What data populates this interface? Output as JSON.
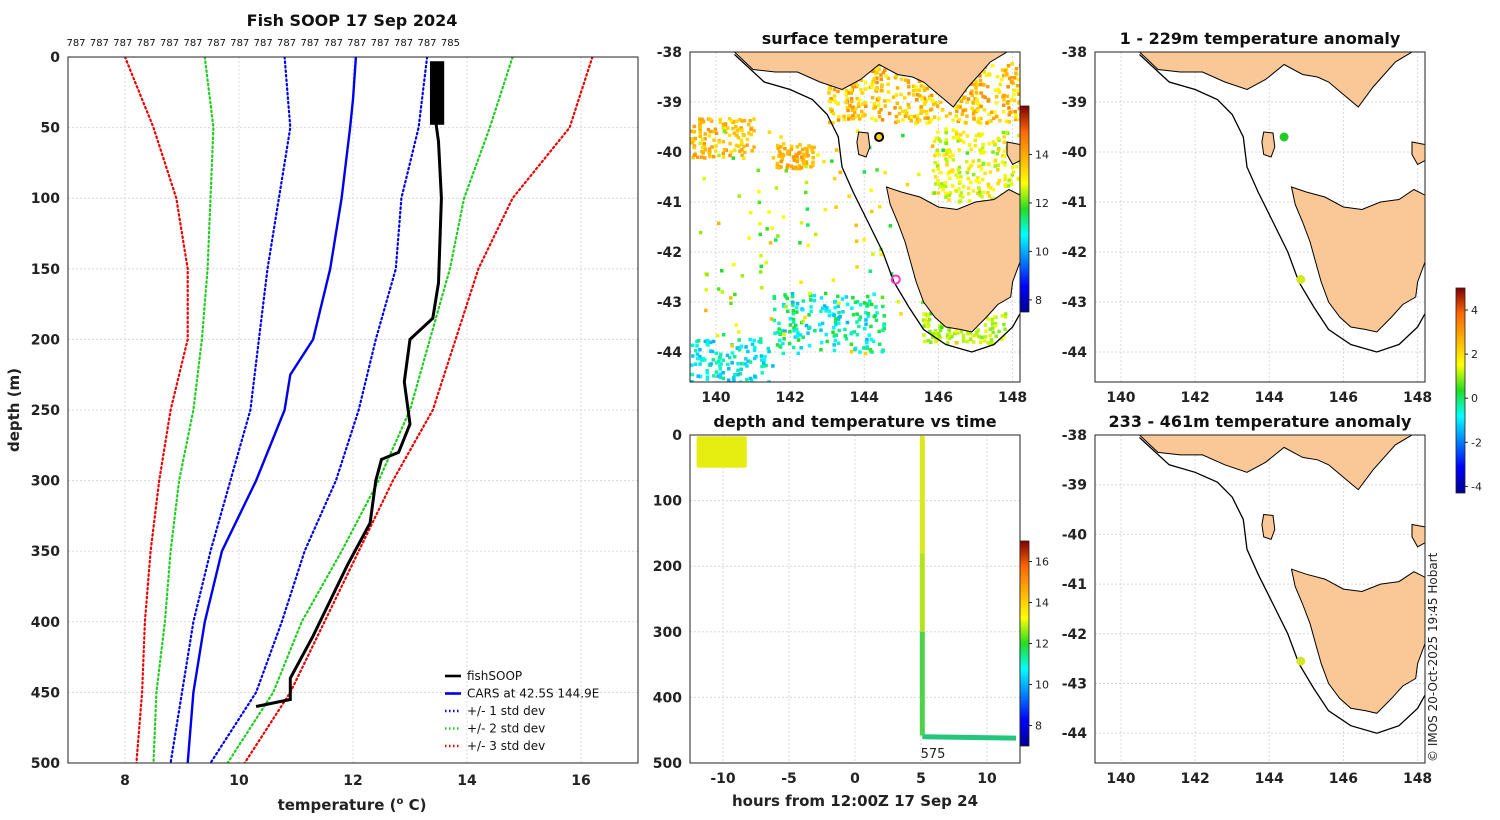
{
  "chart_data": [
    {
      "type": "line",
      "panel": "profile",
      "title": "Fish SOOP 17 Sep 2024",
      "xlabel": "temperature (°C)",
      "ylabel": "depth (m)",
      "xlim": [
        7,
        17
      ],
      "ylim": [
        500,
        0
      ],
      "xticks": [
        8,
        10,
        12,
        14,
        16
      ],
      "yticks": [
        0,
        50,
        100,
        150,
        200,
        250,
        300,
        350,
        400,
        450,
        500
      ],
      "top_labels": [
        "787",
        "787",
        "787",
        "787",
        "787",
        "787",
        "787",
        "787",
        "787",
        "787",
        "787",
        "787",
        "787",
        "787",
        "787",
        "787",
        "785"
      ],
      "series": [
        {
          "name": "fishSOOP",
          "color": "#000000",
          "style": "solid",
          "depth": [
            5,
            20,
            45,
            60,
            100,
            160,
            185,
            200,
            230,
            260,
            280,
            285,
            300,
            330,
            360,
            385,
            410,
            440,
            455,
            460
          ],
          "temp": [
            13.4,
            13.5,
            13.45,
            13.5,
            13.55,
            13.5,
            13.4,
            13.0,
            12.9,
            13.0,
            12.8,
            12.5,
            12.4,
            12.3,
            11.9,
            11.6,
            11.3,
            10.9,
            10.9,
            10.3
          ]
        },
        {
          "name": "CARS at 42.5S 144.9E",
          "color": "#0000ee",
          "style": "solid",
          "depth": [
            0,
            30,
            50,
            100,
            150,
            200,
            225,
            250,
            300,
            350,
            400,
            450,
            500
          ],
          "temp": [
            12.05,
            12.0,
            11.95,
            11.8,
            11.6,
            11.3,
            10.9,
            10.8,
            10.3,
            9.7,
            9.4,
            9.2,
            9.1
          ]
        },
        {
          "name": "CARS -1 std",
          "color": "#0000ee",
          "style": "dotted",
          "depth": [
            0,
            50,
            100,
            150,
            200,
            250,
            300,
            350,
            400,
            450,
            500
          ],
          "temp": [
            10.8,
            10.9,
            10.7,
            10.5,
            10.35,
            10.2,
            9.85,
            9.5,
            9.2,
            9.0,
            8.8
          ]
        },
        {
          "name": "CARS +1 std",
          "color": "#0000ee",
          "style": "dotted",
          "depth": [
            0,
            50,
            100,
            150,
            200,
            250,
            300,
            350,
            400,
            450,
            500
          ],
          "temp": [
            13.3,
            13.15,
            12.85,
            12.75,
            12.4,
            12.1,
            11.7,
            11.15,
            10.75,
            10.3,
            9.5
          ]
        },
        {
          "name": "CARS -2 std",
          "color": "#22cc22",
          "style": "dotted",
          "depth": [
            0,
            50,
            100,
            150,
            200,
            250,
            300,
            350,
            400,
            450,
            500
          ],
          "temp": [
            9.4,
            9.55,
            9.5,
            9.45,
            9.35,
            9.2,
            8.95,
            8.8,
            8.7,
            8.55,
            8.5
          ]
        },
        {
          "name": "CARS +2 std",
          "color": "#22cc22",
          "style": "dotted",
          "depth": [
            0,
            50,
            100,
            150,
            200,
            250,
            300,
            350,
            400,
            450,
            500
          ],
          "temp": [
            14.8,
            14.4,
            13.95,
            13.7,
            13.35,
            13.0,
            12.45,
            11.8,
            11.1,
            10.6,
            9.8
          ]
        },
        {
          "name": "CARS -3 std",
          "color": "#ee0000",
          "style": "dotted",
          "depth": [
            0,
            50,
            100,
            150,
            200,
            250,
            300,
            350,
            400,
            450,
            500
          ],
          "temp": [
            8.0,
            8.5,
            8.9,
            9.1,
            9.1,
            8.8,
            8.6,
            8.45,
            8.35,
            8.3,
            8.2
          ]
        },
        {
          "name": "CARS +3 std",
          "color": "#ee0000",
          "style": "dotted",
          "depth": [
            0,
            50,
            100,
            150,
            200,
            250,
            300,
            350,
            400,
            450,
            500
          ],
          "temp": [
            16.2,
            15.8,
            14.8,
            14.2,
            13.8,
            13.4,
            12.7,
            12.1,
            11.5,
            10.9,
            10.1
          ]
        }
      ],
      "legend": [
        {
          "label": "fishSOOP",
          "color": "#000000",
          "style": "solid"
        },
        {
          "label": "CARS at 42.5S 144.9E",
          "color": "#0000ee",
          "style": "solid"
        },
        {
          "label": "+/- 1 std dev",
          "color": "#0000ee",
          "style": "dotted"
        },
        {
          "label": "+/- 2 std dev",
          "color": "#22cc22",
          "style": "dotted"
        },
        {
          "label": "+/- 3 std dev",
          "color": "#ee0000",
          "style": "dotted"
        }
      ],
      "legend_position": "bottom-right"
    },
    {
      "type": "map",
      "panel": "sst",
      "title": "surface temperature",
      "xlim": [
        139.3,
        148.2
      ],
      "ylim": [
        -44.6,
        -38
      ],
      "xticks": [
        140,
        142,
        144,
        146,
        148
      ],
      "yticks": [
        -38,
        -39,
        -40,
        -41,
        -42,
        -43,
        -44
      ],
      "colorbar": {
        "min": 7.5,
        "max": 16,
        "ticks": [
          8,
          10,
          12,
          14
        ]
      },
      "markers": [
        {
          "lon": 144.4,
          "lat": -39.7,
          "color": "#ffd700",
          "edge": "#000000"
        },
        {
          "lon": 144.85,
          "lat": -42.55,
          "color": "none",
          "edge": "#ff33cc"
        }
      ]
    },
    {
      "type": "scatter",
      "panel": "time",
      "title": "depth and temperature vs time",
      "xlabel": "hours from 12:00Z 17 Sep 24",
      "xlim": [
        -12.5,
        12.5
      ],
      "ylim": [
        500,
        0
      ],
      "xticks": [
        -10,
        -5,
        0,
        5,
        10
      ],
      "yticks": [
        0,
        100,
        200,
        300,
        400,
        500
      ],
      "annotation": "575",
      "colorbar": {
        "min": 7,
        "max": 17,
        "ticks": [
          8,
          10,
          12,
          14,
          16
        ]
      }
    },
    {
      "type": "map",
      "panel": "anom1",
      "title": "1 - 229m temperature anomaly",
      "xlim": [
        139.3,
        148.2
      ],
      "ylim": [
        -44.6,
        -38
      ],
      "xticks": [
        140,
        142,
        144,
        146,
        148
      ],
      "yticks": [
        -38,
        -39,
        -40,
        -41,
        -42,
        -43,
        -44
      ],
      "markers": [
        {
          "lon": 144.4,
          "lat": -39.7,
          "color": "#22cc22"
        },
        {
          "lon": 144.85,
          "lat": -42.55,
          "color": "#d4e62a"
        }
      ]
    },
    {
      "type": "map",
      "panel": "anom2",
      "title": "233 - 461m temperature anomaly",
      "xlim": [
        139.3,
        148.2
      ],
      "ylim": [
        -44.6,
        -38
      ],
      "xticks": [
        140,
        142,
        144,
        146,
        148
      ],
      "yticks": [
        -38,
        -39,
        -40,
        -41,
        -42,
        -43,
        -44
      ],
      "markers": [
        {
          "lon": 144.85,
          "lat": -42.55,
          "color": "#d4e62a"
        }
      ],
      "colorbar": {
        "min": -4.3,
        "max": 5,
        "ticks": [
          -4,
          -2,
          0,
          2,
          4
        ]
      }
    }
  ],
  "labels": {
    "profile_xlabel_prefix": "temperature (",
    "profile_xlabel_sup": "o",
    "profile_xlabel_suffix": " C)",
    "credit": "© IMOS 20-Oct-2025 19:45 Hobart"
  },
  "colors": {
    "land": "#f9c896",
    "coast": "#000000",
    "grid": "#d8d8d8"
  }
}
